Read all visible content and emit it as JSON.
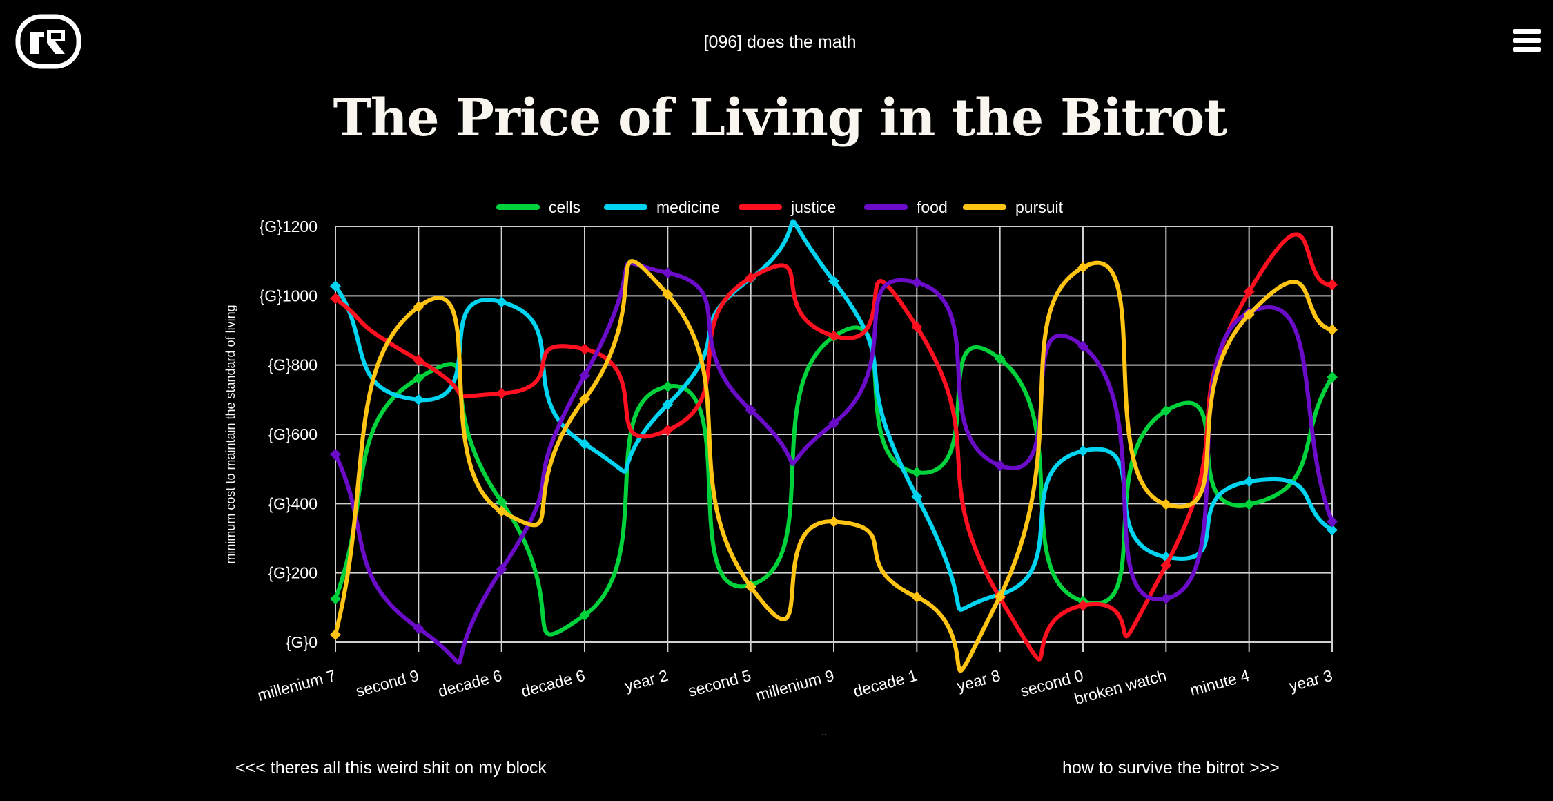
{
  "header": {
    "logo_icon": "bitrot-logo-icon",
    "subtitle": "[096] does the math",
    "menu_icon": "hamburger-menu-icon"
  },
  "title": "The Price of Living in the Bitrot",
  "chart_data": {
    "type": "line",
    "title": "",
    "xlabel": "",
    "ylabel": "minimum cost to maintain the standard of living",
    "ylim": [
      0,
      1200
    ],
    "yticks": [
      0,
      200,
      400,
      600,
      800,
      1000,
      1200
    ],
    "ytick_labels": [
      "{G}0",
      "{G}200",
      "{G}400",
      "{G}600",
      "{G}800",
      "{G}1000",
      "{G}1200"
    ],
    "categories": [
      "millenium 7",
      "second 9",
      "decade 6",
      "decade 6",
      "year 2",
      "second 5",
      "millenium 9",
      "decade 1",
      "year 8",
      "second 0",
      "broken watch",
      "minute 4",
      "year 3"
    ],
    "grid": true,
    "legend_position": "top",
    "series": [
      {
        "name": "cells",
        "color": "#00d23c",
        "values": [
          125,
          762,
          405,
          78,
          738,
          165,
          882,
          490,
          818,
          118,
          668,
          398,
          765
        ]
      },
      {
        "name": "medicine",
        "color": "#00d4f0",
        "values": [
          1028,
          700,
          982,
          572,
          686,
          1050,
          1042,
          420,
          138,
          552,
          246,
          464,
          324
        ]
      },
      {
        "name": "justice",
        "color": "#ff1020",
        "values": [
          992,
          814,
          718,
          846,
          612,
          1052,
          884,
          910,
          128,
          106,
          222,
          1012,
          1032
        ]
      },
      {
        "name": "food",
        "color": "#6a0cc8",
        "values": [
          542,
          40,
          210,
          770,
          1066,
          670,
          632,
          1038,
          510,
          854,
          126,
          952,
          348
        ]
      },
      {
        "name": "pursuit",
        "color": "#ffc414",
        "values": [
          22,
          968,
          378,
          702,
          1004,
          160,
          348,
          130,
          132,
          1082,
          398,
          946,
          902
        ]
      }
    ]
  },
  "footer": {
    "prev_link": "<<< theres all this weird shit on my block",
    "next_link": "how to survive the bitrot >>>",
    "dots": ".."
  }
}
